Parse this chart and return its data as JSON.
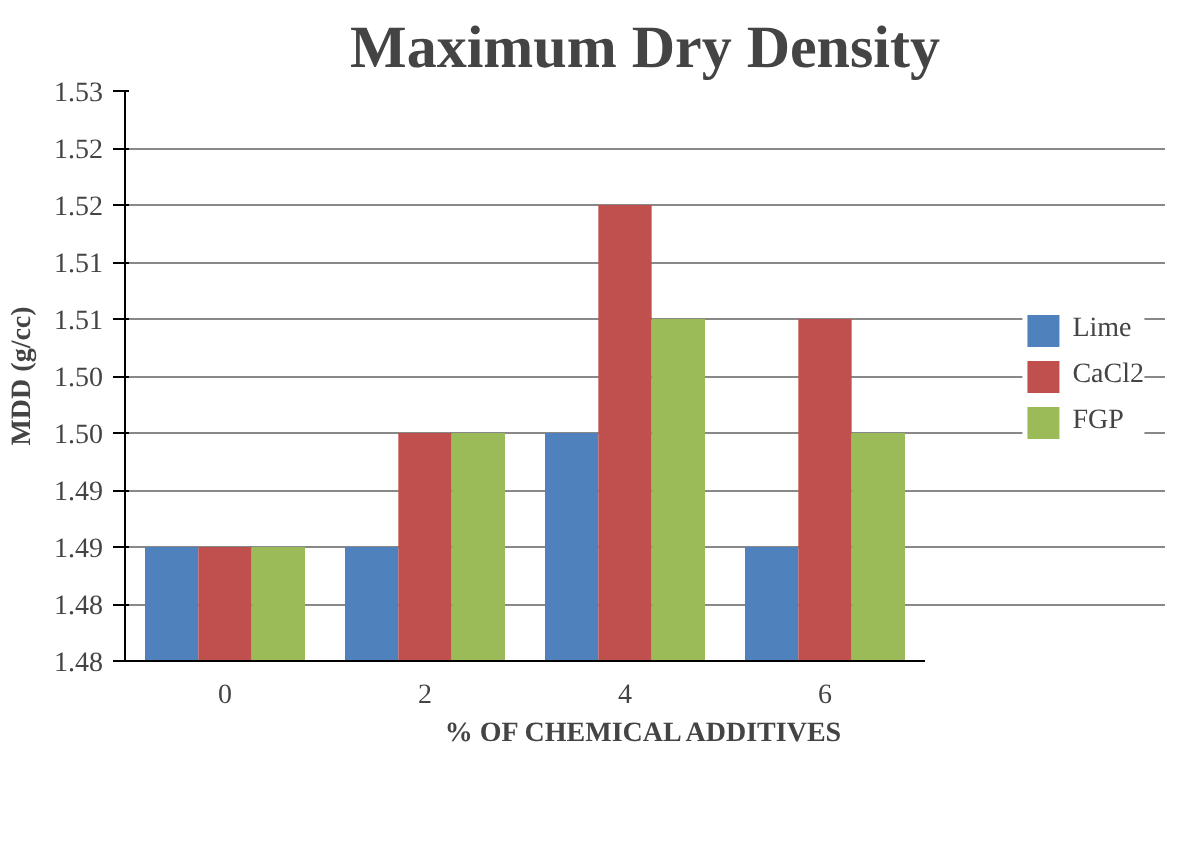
{
  "chart_data": {
    "type": "bar",
    "title": "Maximum Dry Density",
    "xlabel": "% OF CHEMICAL ADDITIVES",
    "ylabel": "MDD (g/cc)",
    "categories": [
      "0",
      "2",
      "4",
      "6"
    ],
    "series": [
      {
        "name": "Lime",
        "color": "#4f81bd",
        "values": [
          1.49,
          1.49,
          1.5,
          1.49
        ]
      },
      {
        "name": "CaCl2",
        "color": "#c0504d",
        "values": [
          1.49,
          1.5,
          1.52,
          1.51
        ]
      },
      {
        "name": "FGP",
        "color": "#9bbb59",
        "values": [
          1.49,
          1.5,
          1.51,
          1.5
        ]
      }
    ],
    "ylim": [
      1.48,
      1.53
    ],
    "yticks": [
      1.48,
      {
        "value": 1.485,
        "label": "1.48"
      },
      1.49,
      {
        "value": 1.495,
        "label": "1.49"
      },
      {
        "value": 1.5,
        "label": "1.50"
      },
      {
        "value": 1.505,
        "label": "1.50"
      },
      1.51,
      {
        "value": 1.515,
        "label": "1.51"
      },
      1.52,
      {
        "value": 1.525,
        "label": "1.52"
      },
      1.53
    ],
    "grid": "y",
    "legend": "right"
  }
}
